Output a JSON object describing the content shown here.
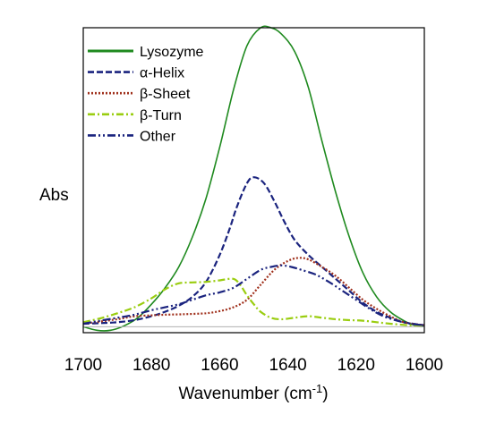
{
  "chart_data": {
    "type": "line",
    "xlabel": "Wavenumber (cm",
    "xlabel_sup": "-1",
    "xlabel_end": ")",
    "ylabel": "Abs",
    "xlim": [
      1700,
      1600
    ],
    "x_reversed": true,
    "ylim": [
      -0.02,
      1.0
    ],
    "x_ticks": [
      1700,
      1680,
      1660,
      1640,
      1620,
      1600
    ],
    "y_ticks_shown": false,
    "grid": false,
    "baseline_y": 0,
    "legend": {
      "placement": "top-left"
    },
    "series": [
      {
        "name": "Lysozyme",
        "color": "#1f8a1f",
        "dash": "solid",
        "x": [
          1700,
          1696,
          1692,
          1688,
          1684,
          1680,
          1676,
          1672,
          1668,
          1664,
          1660,
          1656,
          1652,
          1648,
          1645,
          1642,
          1638,
          1634,
          1630,
          1626,
          1622,
          1618,
          1614,
          1610,
          1606,
          1603,
          1600
        ],
        "y": [
          0.0,
          -0.012,
          -0.012,
          0.003,
          0.03,
          0.075,
          0.13,
          0.2,
          0.3,
          0.43,
          0.6,
          0.79,
          0.94,
          1.0,
          1.0,
          0.98,
          0.92,
          0.8,
          0.62,
          0.45,
          0.3,
          0.18,
          0.1,
          0.05,
          0.02,
          0.005,
          0.0
        ]
      },
      {
        "name": "α-Helix",
        "color": "#1a237e",
        "dash": "dashed",
        "x": [
          1700,
          1695,
          1690,
          1685,
          1680,
          1676,
          1672,
          1668,
          1664,
          1660,
          1657,
          1655,
          1652,
          1650,
          1647,
          1644,
          1641,
          1638,
          1634,
          1630,
          1626,
          1622,
          1618,
          1614,
          1610,
          1606,
          1600
        ],
        "y": [
          0.01,
          0.012,
          0.015,
          0.022,
          0.035,
          0.05,
          0.07,
          0.1,
          0.15,
          0.24,
          0.33,
          0.4,
          0.48,
          0.5,
          0.48,
          0.42,
          0.35,
          0.29,
          0.24,
          0.2,
          0.16,
          0.12,
          0.08,
          0.05,
          0.03,
          0.015,
          0.005
        ]
      },
      {
        "name": "β-Sheet",
        "color": "#a0301c",
        "dash": "dotted",
        "x": [
          1700,
          1690,
          1685,
          1680,
          1676,
          1670,
          1664,
          1660,
          1656,
          1652,
          1648,
          1644,
          1640,
          1637,
          1634,
          1630,
          1626,
          1622,
          1618,
          1614,
          1610,
          1606,
          1600
        ],
        "y": [
          0.01,
          0.025,
          0.035,
          0.038,
          0.04,
          0.042,
          0.045,
          0.052,
          0.065,
          0.09,
          0.14,
          0.19,
          0.22,
          0.23,
          0.225,
          0.2,
          0.17,
          0.13,
          0.09,
          0.06,
          0.035,
          0.015,
          0.005
        ]
      },
      {
        "name": "β-Turn",
        "color": "#9acd10",
        "dash": "dashdot",
        "x": [
          1700,
          1695,
          1690,
          1685,
          1680,
          1676,
          1672,
          1668,
          1664,
          1660,
          1656,
          1654,
          1652,
          1650,
          1648,
          1645,
          1642,
          1638,
          1634,
          1630,
          1626,
          1622,
          1618,
          1614,
          1610,
          1605,
          1600
        ],
        "y": [
          0.015,
          0.028,
          0.045,
          0.065,
          0.095,
          0.125,
          0.145,
          0.148,
          0.15,
          0.155,
          0.16,
          0.14,
          0.105,
          0.075,
          0.05,
          0.03,
          0.025,
          0.03,
          0.035,
          0.03,
          0.025,
          0.022,
          0.02,
          0.015,
          0.01,
          0.005,
          0.0
        ]
      },
      {
        "name": "Other",
        "color": "#1a237e",
        "dash": "dashdotdot",
        "x": [
          1700,
          1695,
          1690,
          1685,
          1680,
          1676,
          1672,
          1668,
          1664,
          1660,
          1656,
          1652,
          1648,
          1645,
          1642,
          1639,
          1636,
          1632,
          1628,
          1624,
          1620,
          1616,
          1612,
          1608,
          1604,
          1600
        ],
        "y": [
          0.01,
          0.02,
          0.03,
          0.04,
          0.055,
          0.065,
          0.075,
          0.09,
          0.105,
          0.115,
          0.13,
          0.16,
          0.19,
          0.2,
          0.205,
          0.2,
          0.19,
          0.175,
          0.15,
          0.12,
          0.09,
          0.06,
          0.035,
          0.02,
          0.01,
          0.005
        ]
      }
    ]
  }
}
